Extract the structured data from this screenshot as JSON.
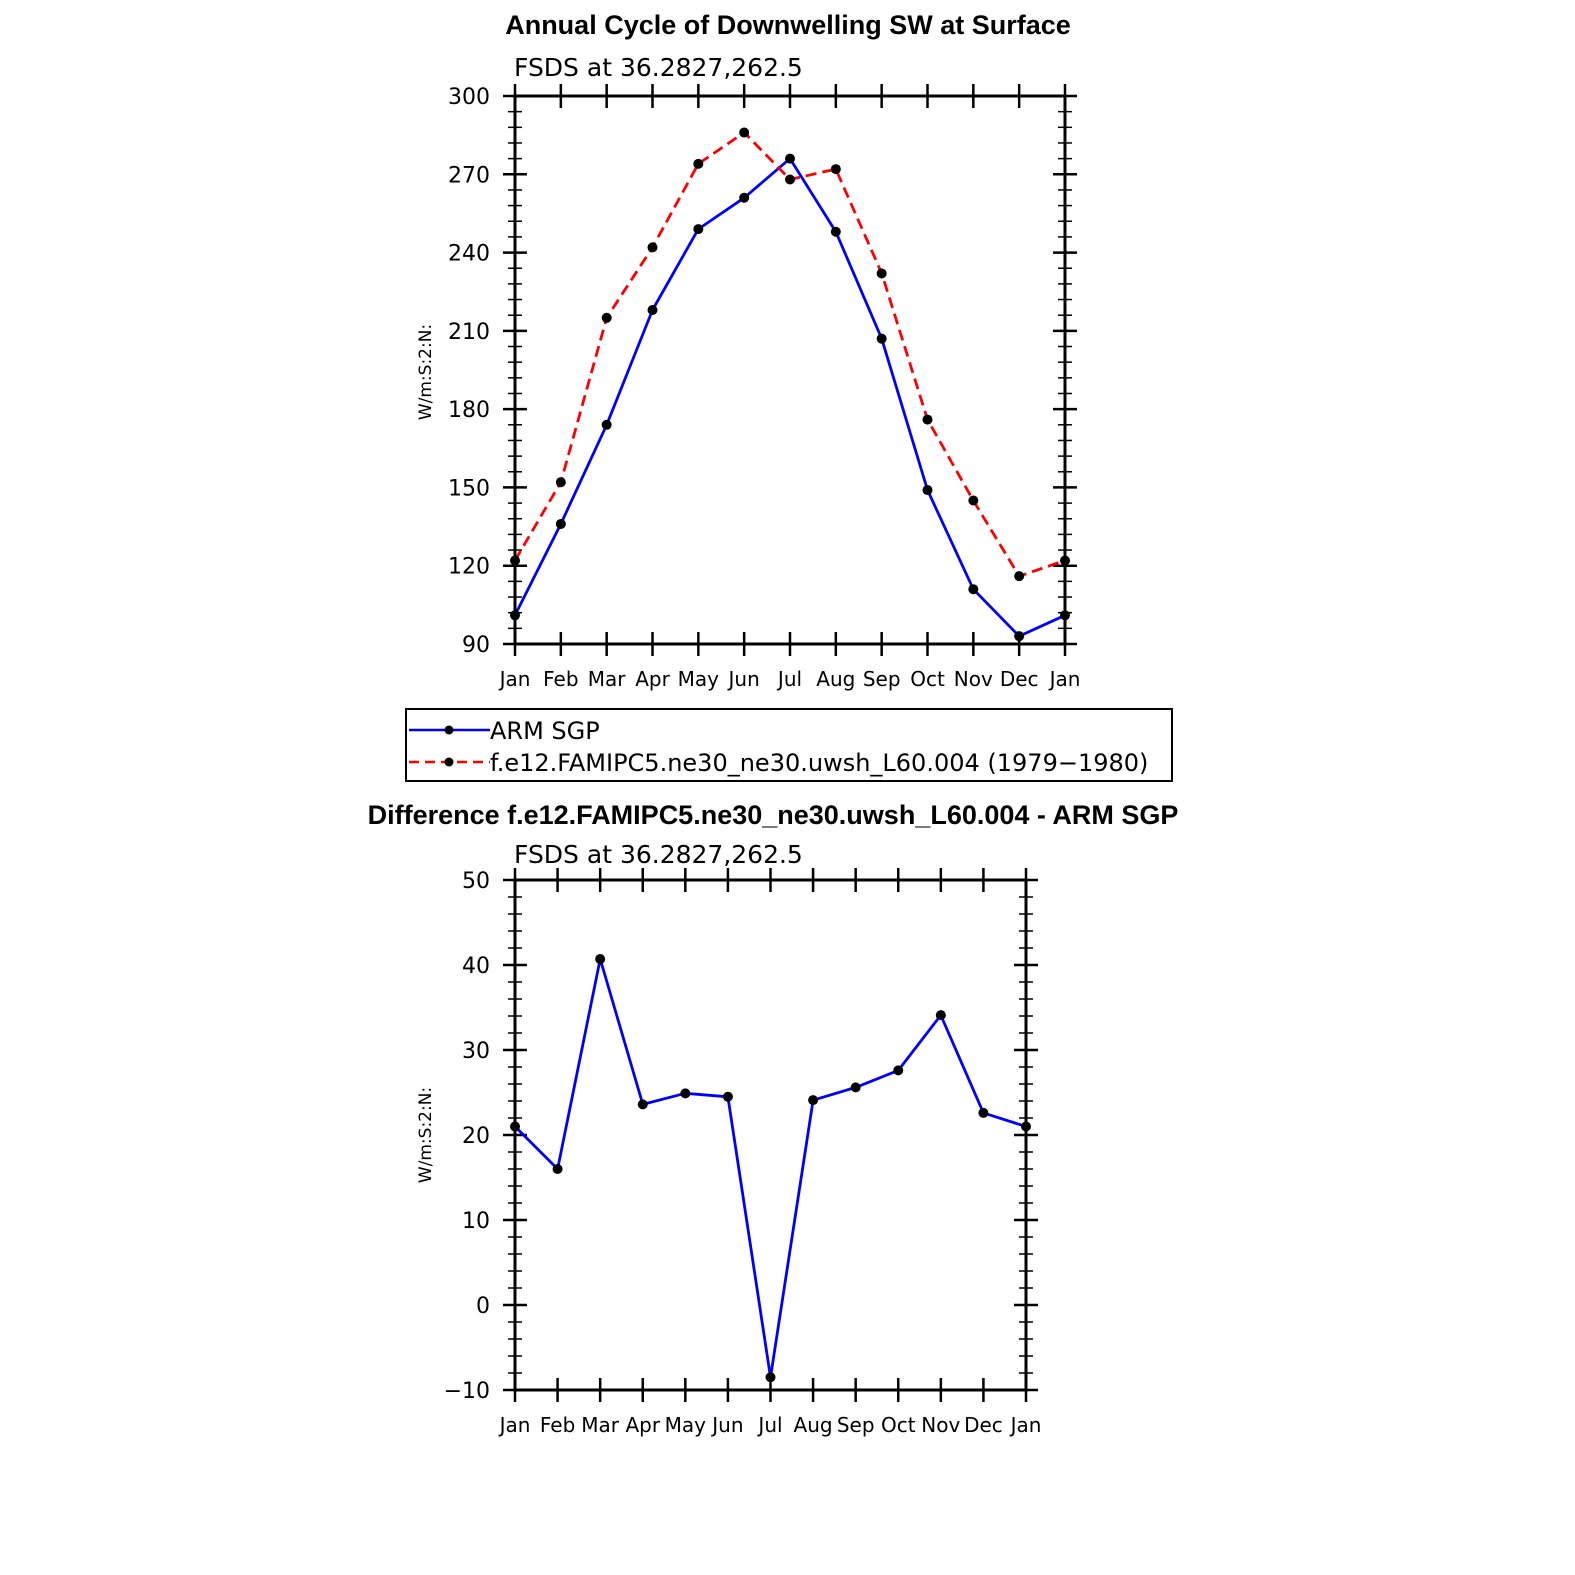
{
  "chart_data": [
    {
      "type": "line",
      "title": "Annual Cycle of Downwelling SW at Surface",
      "subtitle": "FSDS at 36.2827,262.5",
      "ylabel": "W/m:S:2:N:",
      "xlabel": "",
      "categories": [
        "Jan",
        "Feb",
        "Mar",
        "Apr",
        "May",
        "Jun",
        "Jul",
        "Aug",
        "Sep",
        "Oct",
        "Nov",
        "Dec",
        "Jan"
      ],
      "ylim": [
        90,
        300
      ],
      "yticks": [
        90,
        120,
        150,
        180,
        210,
        240,
        270,
        300
      ],
      "series": [
        {
          "name": "ARM SGP",
          "color": "#0000ff",
          "dash": "solid",
          "values": [
            101,
            136,
            174,
            218,
            249,
            261,
            276,
            248,
            207,
            149,
            111,
            93,
            101
          ]
        },
        {
          "name": "f.e12.FAMIPC5.ne30_ne30.uwsh_L60.004 (1979−1980)",
          "color": "#ff0000",
          "dash": "dashed",
          "values": [
            122,
            152,
            215,
            242,
            274,
            286,
            268,
            272,
            232,
            176,
            145,
            116,
            122
          ]
        }
      ],
      "legend": [
        "ARM SGP",
        "f.e12.FAMIPC5.ne30_ne30.uwsh_L60.004 (1979−1980)"
      ],
      "legend_position": "below"
    },
    {
      "type": "line",
      "title": "Difference f.e12.FAMIPC5.ne30_ne30.uwsh_L60.004 - ARM SGP",
      "subtitle": "FSDS at 36.2827,262.5",
      "ylabel": "W/m:S:2:N:",
      "xlabel": "",
      "categories": [
        "Jan",
        "Feb",
        "Mar",
        "Apr",
        "May",
        "Jun",
        "Jul",
        "Aug",
        "Sep",
        "Oct",
        "Nov",
        "Dec",
        "Jan"
      ],
      "ylim": [
        -10,
        50
      ],
      "yticks": [
        -10,
        0,
        10,
        20,
        30,
        40,
        50
      ],
      "ytick_labels": [
        "−10",
        "0",
        "10",
        "20",
        "30",
        "40",
        "50"
      ],
      "series": [
        {
          "name": "Difference",
          "color": "#0000ff",
          "dash": "solid",
          "values": [
            21,
            16,
            40.7,
            23.6,
            24.9,
            24.5,
            -8.5,
            24.1,
            25.6,
            27.6,
            34.1,
            22.6,
            21
          ]
        }
      ]
    }
  ]
}
